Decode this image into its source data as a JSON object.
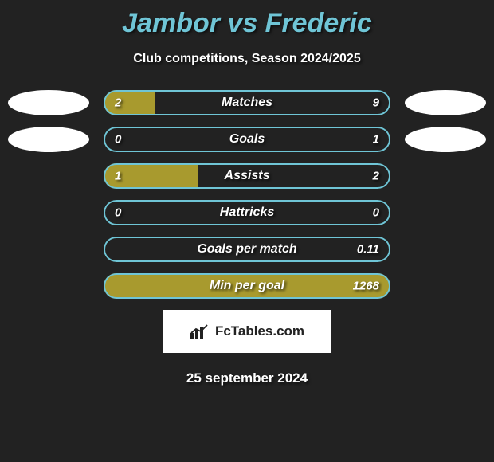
{
  "title": "Jambor vs Frederic",
  "subtitle": "Club competitions, Season 2024/2025",
  "colors": {
    "background": "#222222",
    "accent_left": "#a89a2e",
    "accent_right": "#6fc5d6",
    "title_color": "#6fc5d6",
    "text_color": "#ffffff",
    "avatar_bg": "#ffffff",
    "badge_bg": "#ffffff",
    "badge_text": "#222222"
  },
  "bars": [
    {
      "label": "Matches",
      "left_value": "2",
      "right_value": "9",
      "left_pct": 18,
      "right_pct": 0,
      "show_avatars": true
    },
    {
      "label": "Goals",
      "left_value": "0",
      "right_value": "1",
      "left_pct": 0,
      "right_pct": 0,
      "show_avatars": true
    },
    {
      "label": "Assists",
      "left_value": "1",
      "right_value": "2",
      "left_pct": 33,
      "right_pct": 0,
      "show_avatars": false
    },
    {
      "label": "Hattricks",
      "left_value": "0",
      "right_value": "0",
      "left_pct": 0,
      "right_pct": 0,
      "show_avatars": false
    },
    {
      "label": "Goals per match",
      "left_value": "",
      "right_value": "0.11",
      "left_pct": 0,
      "right_pct": 0,
      "show_avatars": false
    },
    {
      "label": "Min per goal",
      "left_value": "",
      "right_value": "1268",
      "left_pct": 100,
      "right_pct": 0,
      "show_avatars": false
    }
  ],
  "badge": {
    "text": "FcTables.com"
  },
  "footer_date": "25 september 2024"
}
